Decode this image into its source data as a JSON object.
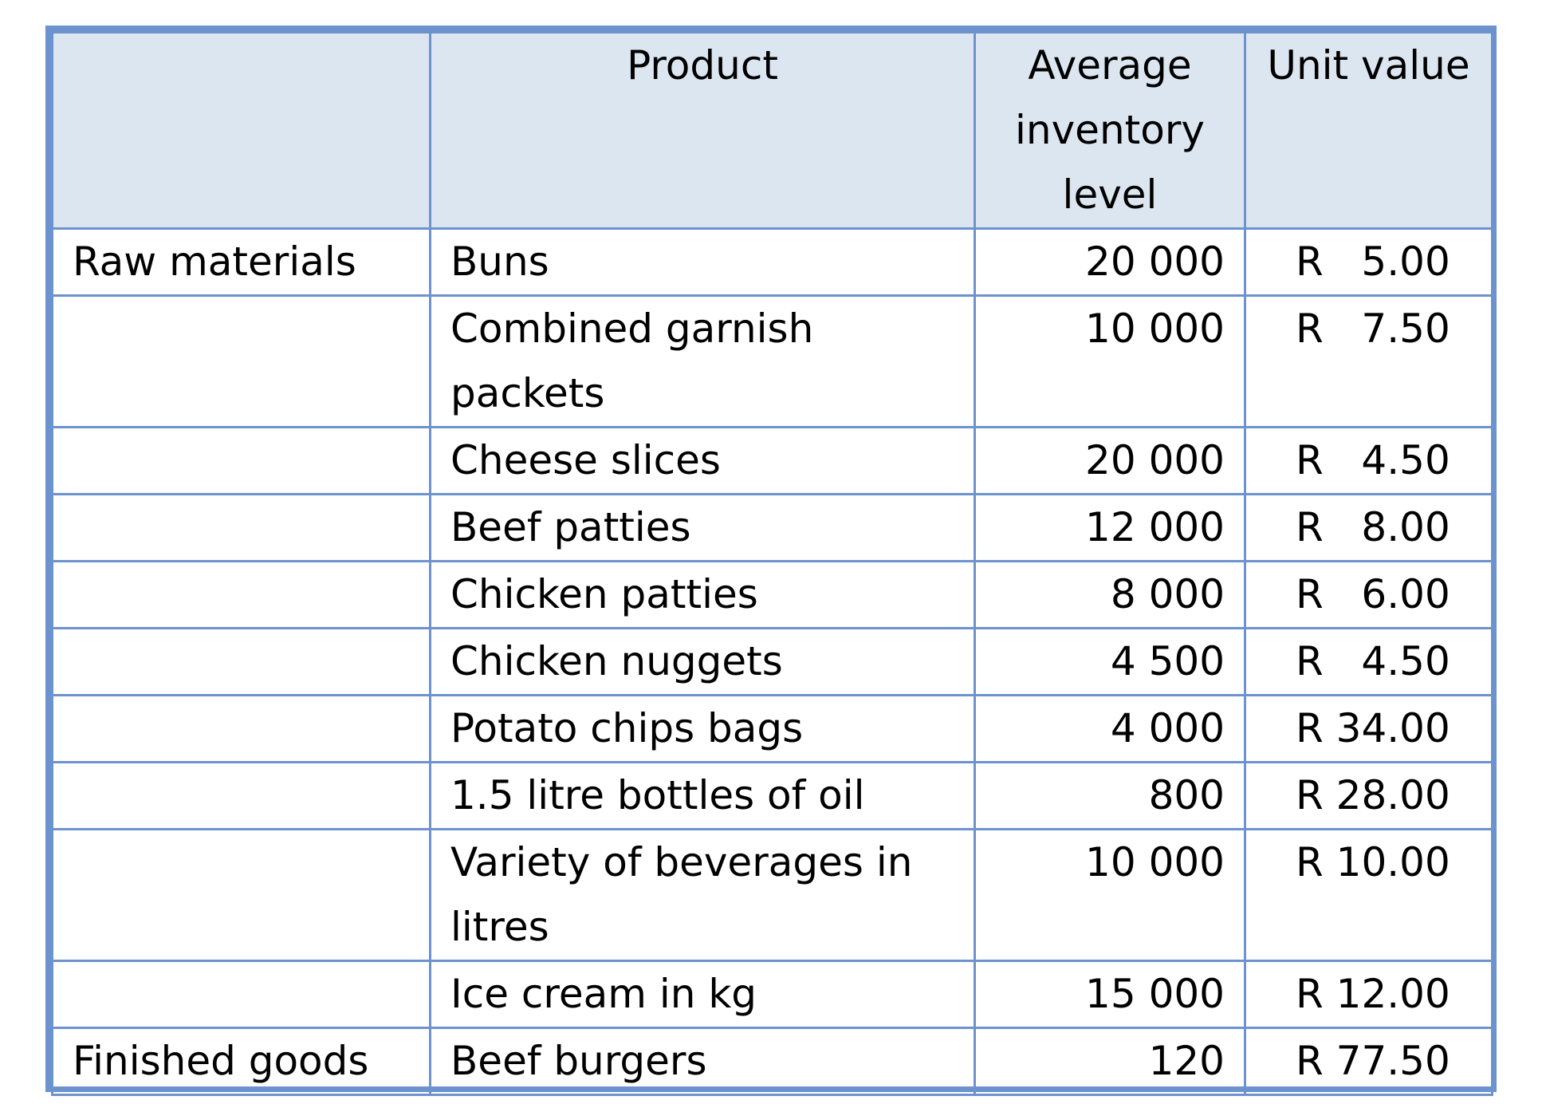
{
  "table": {
    "headers": [
      "",
      "Product",
      "Average inventory level",
      "Unit value"
    ],
    "rows": [
      {
        "category": "Raw materials",
        "product": "Buns",
        "avg": "20 000",
        "value": "R   5.00"
      },
      {
        "category": "",
        "product": "Combined garnish packets",
        "avg": "10 000",
        "value": "R   7.50"
      },
      {
        "category": "",
        "product": "Cheese slices",
        "avg": "20 000",
        "value": "R   4.50"
      },
      {
        "category": "",
        "product": "Beef patties",
        "avg": "12 000",
        "value": "R   8.00"
      },
      {
        "category": "",
        "product": "Chicken patties",
        "avg": "8 000",
        "value": "R   6.00"
      },
      {
        "category": "",
        "product": "Chicken nuggets",
        "avg": "4 500",
        "value": "R   4.50"
      },
      {
        "category": "",
        "product": "Potato chips bags",
        "avg": "4 000",
        "value": "R 34.00"
      },
      {
        "category": "",
        "product": "1.5 litre bottles of oil",
        "avg": "800",
        "value": "R 28.00"
      },
      {
        "category": "",
        "product": "Variety of beverages in litres",
        "avg": "10 000",
        "value": "R 10.00"
      },
      {
        "category": "",
        "product": "Ice cream in kg",
        "avg": "15 000",
        "value": "R 12.00"
      },
      {
        "category": "Finished goods",
        "product": "Beef burgers",
        "avg": "120",
        "value": "R 77.50"
      }
    ]
  },
  "colors": {
    "border": "#6d93cf",
    "header_bg": "#dce6f0"
  }
}
